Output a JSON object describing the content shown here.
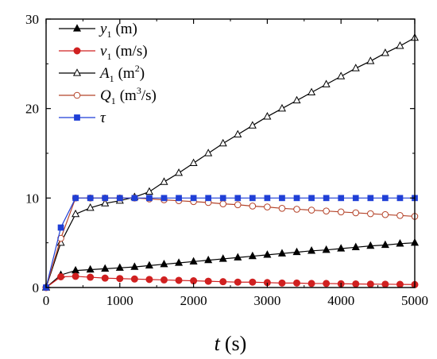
{
  "chart_data": {
    "type": "line",
    "xlabel_symbol": "t",
    "xlabel_unit": "(s)",
    "ylabel": "",
    "xlim": [
      0,
      5000
    ],
    "ylim": [
      0,
      30
    ],
    "xticks": [
      "0",
      "1000",
      "2000",
      "3000",
      "4000",
      "5000"
    ],
    "yticks": [
      "0",
      "10",
      "20",
      "30"
    ],
    "grid": false,
    "legend_position": "top-left",
    "series": [
      {
        "symbol": "y",
        "subscript": "1",
        "unit_pre": "(m)",
        "unit_sup": "",
        "unit_post": "",
        "color": "#000000",
        "marker": "filled-triangle",
        "x": [
          0,
          200,
          400,
          600,
          800,
          1000,
          1200,
          1400,
          1600,
          1800,
          2000,
          2200,
          2400,
          2600,
          2800,
          3000,
          3200,
          3400,
          3600,
          3800,
          4000,
          4200,
          4400,
          4600,
          4800,
          5000
        ],
        "values": [
          0.0,
          1.4,
          1.9,
          2.0,
          2.1,
          2.2,
          2.3,
          2.45,
          2.6,
          2.75,
          2.9,
          3.05,
          3.2,
          3.35,
          3.5,
          3.65,
          3.8,
          3.95,
          4.1,
          4.2,
          4.35,
          4.5,
          4.65,
          4.75,
          4.9,
          5.0
        ]
      },
      {
        "symbol": "v",
        "subscript": "1",
        "unit_pre": "(m/s)",
        "unit_sup": "",
        "unit_post": "",
        "color": "#d02020",
        "marker": "filled-circle",
        "x": [
          0,
          200,
          400,
          600,
          800,
          1000,
          1200,
          1400,
          1600,
          1800,
          2000,
          2200,
          2400,
          2600,
          2800,
          3000,
          3200,
          3400,
          3600,
          3800,
          4000,
          4200,
          4400,
          4600,
          4800,
          5000
        ],
        "values": [
          0.0,
          1.2,
          1.25,
          1.15,
          1.05,
          1.0,
          0.95,
          0.9,
          0.85,
          0.8,
          0.75,
          0.7,
          0.65,
          0.6,
          0.6,
          0.55,
          0.5,
          0.5,
          0.45,
          0.45,
          0.42,
          0.4,
          0.38,
          0.37,
          0.35,
          0.33
        ]
      },
      {
        "symbol": "A",
        "subscript": "1",
        "unit_pre": "(m",
        "unit_sup": "2",
        "unit_post": ")",
        "color": "#000000",
        "marker": "open-triangle",
        "x": [
          0,
          200,
          400,
          600,
          800,
          1000,
          1200,
          1400,
          1600,
          1800,
          2000,
          2200,
          2400,
          2600,
          2800,
          3000,
          3200,
          3400,
          3600,
          3800,
          4000,
          4200,
          4400,
          4600,
          4800,
          5000
        ],
        "values": [
          0.0,
          5.0,
          8.2,
          8.9,
          9.4,
          9.7,
          10.1,
          10.7,
          11.8,
          12.8,
          13.9,
          15.0,
          16.1,
          17.1,
          18.1,
          19.1,
          20.0,
          20.9,
          21.8,
          22.7,
          23.6,
          24.5,
          25.3,
          26.2,
          27.0,
          27.9
        ]
      },
      {
        "symbol": "Q",
        "subscript": "1",
        "unit_pre": "(m",
        "unit_sup": "3",
        "unit_post": "/s)",
        "color": "#b5442a",
        "marker": "open-circle",
        "x": [
          0,
          200,
          400,
          600,
          800,
          1000,
          1200,
          1400,
          1600,
          1800,
          2000,
          2200,
          2400,
          2600,
          2800,
          3000,
          3200,
          3400,
          3600,
          3800,
          4000,
          4200,
          4400,
          4600,
          4800,
          5000
        ],
        "values": [
          0.0,
          5.5,
          10.0,
          10.0,
          10.0,
          10.0,
          10.0,
          9.9,
          9.8,
          9.7,
          9.6,
          9.5,
          9.35,
          9.25,
          9.1,
          9.0,
          8.85,
          8.75,
          8.65,
          8.55,
          8.45,
          8.35,
          8.25,
          8.15,
          8.05,
          7.95
        ]
      },
      {
        "symbol": "τ",
        "subscript": "",
        "unit_pre": "",
        "unit_sup": "",
        "unit_post": "",
        "color": "#1f3fd6",
        "marker": "filled-square",
        "x": [
          0,
          200,
          400,
          600,
          800,
          1000,
          1200,
          1400,
          1600,
          1800,
          2000,
          2200,
          2400,
          2600,
          2800,
          3000,
          3200,
          3400,
          3600,
          3800,
          4000,
          4200,
          4400,
          4600,
          4800,
          5000
        ],
        "values": [
          0.0,
          6.7,
          10.0,
          10.0,
          10.0,
          10.0,
          10.0,
          10.0,
          10.0,
          10.0,
          10.0,
          10.0,
          10.0,
          10.0,
          10.0,
          10.0,
          10.0,
          10.0,
          10.0,
          10.0,
          10.0,
          10.0,
          10.0,
          10.0,
          10.0,
          10.0
        ]
      }
    ]
  }
}
